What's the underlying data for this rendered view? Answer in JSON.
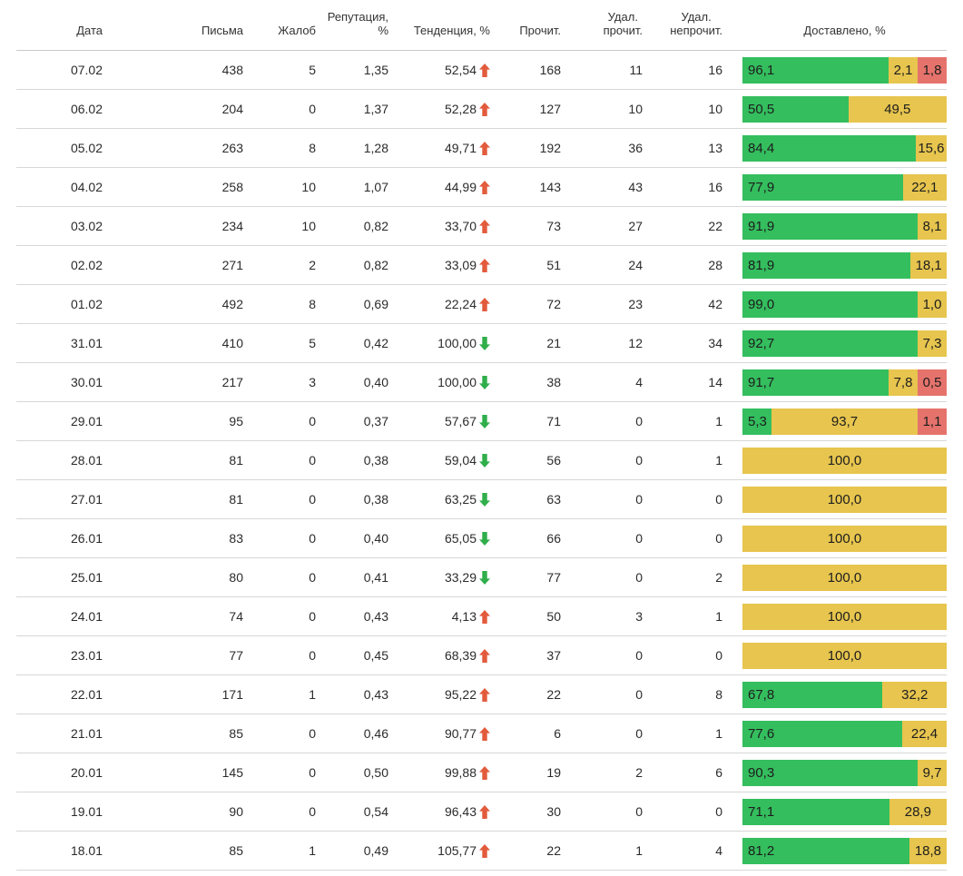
{
  "colors": {
    "green": "#34be5e",
    "yellow": "#e7c54e",
    "red": "#e5736c",
    "trend_up": "#e25b3c",
    "trend_down": "#2fae4a"
  },
  "header": {
    "date": "Дата",
    "letters": "Письма",
    "complaints": "Жалоб",
    "reputation": "Репутация, %",
    "trend": "Тенденция, %",
    "read": "Прочит.",
    "del_read_line1": "Удал.",
    "del_read_line2": "прочит.",
    "del_unread_line1": "Удал.",
    "del_unread_line2": "непрочит.",
    "delivered": "Доставлено, %"
  },
  "rows": [
    {
      "date": "07.02",
      "letters": "438",
      "complaints": "5",
      "reputation": "1,35",
      "trend": "52,54",
      "trend_dir": "up",
      "read": "168",
      "del_read": "11",
      "del_unread": "16",
      "delivered": [
        {
          "color": "green",
          "label": "96,1",
          "value": 96.1
        },
        {
          "color": "yellow",
          "label": "2,1",
          "value": 2.1
        },
        {
          "color": "red",
          "label": "1,8",
          "value": 1.8
        }
      ]
    },
    {
      "date": "06.02",
      "letters": "204",
      "complaints": "0",
      "reputation": "1,37",
      "trend": "52,28",
      "trend_dir": "up",
      "read": "127",
      "del_read": "10",
      "del_unread": "10",
      "delivered": [
        {
          "color": "green",
          "label": "50,5",
          "value": 50.5
        },
        {
          "color": "yellow",
          "label": "49,5",
          "value": 49.5
        }
      ]
    },
    {
      "date": "05.02",
      "letters": "263",
      "complaints": "8",
      "reputation": "1,28",
      "trend": "49,71",
      "trend_dir": "up",
      "read": "192",
      "del_read": "36",
      "del_unread": "13",
      "delivered": [
        {
          "color": "green",
          "label": "84,4",
          "value": 84.4
        },
        {
          "color": "yellow",
          "label": "15,6",
          "value": 15.6
        }
      ]
    },
    {
      "date": "04.02",
      "letters": "258",
      "complaints": "10",
      "reputation": "1,07",
      "trend": "44,99",
      "trend_dir": "up",
      "read": "143",
      "del_read": "43",
      "del_unread": "16",
      "delivered": [
        {
          "color": "green",
          "label": "77,9",
          "value": 77.9
        },
        {
          "color": "yellow",
          "label": "22,1",
          "value": 22.1
        }
      ]
    },
    {
      "date": "03.02",
      "letters": "234",
      "complaints": "10",
      "reputation": "0,82",
      "trend": "33,70",
      "trend_dir": "up",
      "read": "73",
      "del_read": "27",
      "del_unread": "22",
      "delivered": [
        {
          "color": "green",
          "label": "91,9",
          "value": 91.9
        },
        {
          "color": "yellow",
          "label": "8,1",
          "value": 8.1
        }
      ]
    },
    {
      "date": "02.02",
      "letters": "271",
      "complaints": "2",
      "reputation": "0,82",
      "trend": "33,09",
      "trend_dir": "up",
      "read": "51",
      "del_read": "24",
      "del_unread": "28",
      "delivered": [
        {
          "color": "green",
          "label": "81,9",
          "value": 81.9
        },
        {
          "color": "yellow",
          "label": "18,1",
          "value": 18.1
        }
      ]
    },
    {
      "date": "01.02",
      "letters": "492",
      "complaints": "8",
      "reputation": "0,69",
      "trend": "22,24",
      "trend_dir": "up",
      "read": "72",
      "del_read": "23",
      "del_unread": "42",
      "delivered": [
        {
          "color": "green",
          "label": "99,0",
          "value": 99.0
        },
        {
          "color": "yellow",
          "label": "1,0",
          "value": 1.0
        }
      ]
    },
    {
      "date": "31.01",
      "letters": "410",
      "complaints": "5",
      "reputation": "0,42",
      "trend": "100,00",
      "trend_dir": "down",
      "read": "21",
      "del_read": "12",
      "del_unread": "34",
      "delivered": [
        {
          "color": "green",
          "label": "92,7",
          "value": 92.7
        },
        {
          "color": "yellow",
          "label": "7,3",
          "value": 7.3
        }
      ]
    },
    {
      "date": "30.01",
      "letters": "217",
      "complaints": "3",
      "reputation": "0,40",
      "trend": "100,00",
      "trend_dir": "down",
      "read": "38",
      "del_read": "4",
      "del_unread": "14",
      "delivered": [
        {
          "color": "green",
          "label": "91,7",
          "value": 91.7
        },
        {
          "color": "yellow",
          "label": "7,8",
          "value": 7.8
        },
        {
          "color": "red",
          "label": "0,5",
          "value": 0.5
        }
      ]
    },
    {
      "date": "29.01",
      "letters": "95",
      "complaints": "0",
      "reputation": "0,37",
      "trend": "57,67",
      "trend_dir": "down",
      "read": "71",
      "del_read": "0",
      "del_unread": "1",
      "delivered": [
        {
          "color": "green",
          "label": "5,3",
          "value": 5.3
        },
        {
          "color": "yellow",
          "label": "93,7",
          "value": 93.7
        },
        {
          "color": "red",
          "label": "1,1",
          "value": 1.1
        }
      ]
    },
    {
      "date": "28.01",
      "letters": "81",
      "complaints": "0",
      "reputation": "0,38",
      "trend": "59,04",
      "trend_dir": "down",
      "read": "56",
      "del_read": "0",
      "del_unread": "1",
      "delivered": [
        {
          "color": "yellow",
          "label": "100,0",
          "value": 100.0
        }
      ]
    },
    {
      "date": "27.01",
      "letters": "81",
      "complaints": "0",
      "reputation": "0,38",
      "trend": "63,25",
      "trend_dir": "down",
      "read": "63",
      "del_read": "0",
      "del_unread": "0",
      "delivered": [
        {
          "color": "yellow",
          "label": "100,0",
          "value": 100.0
        }
      ]
    },
    {
      "date": "26.01",
      "letters": "83",
      "complaints": "0",
      "reputation": "0,40",
      "trend": "65,05",
      "trend_dir": "down",
      "read": "66",
      "del_read": "0",
      "del_unread": "0",
      "delivered": [
        {
          "color": "yellow",
          "label": "100,0",
          "value": 100.0
        }
      ]
    },
    {
      "date": "25.01",
      "letters": "80",
      "complaints": "0",
      "reputation": "0,41",
      "trend": "33,29",
      "trend_dir": "down",
      "read": "77",
      "del_read": "0",
      "del_unread": "2",
      "delivered": [
        {
          "color": "yellow",
          "label": "100,0",
          "value": 100.0
        }
      ]
    },
    {
      "date": "24.01",
      "letters": "74",
      "complaints": "0",
      "reputation": "0,43",
      "trend": "4,13",
      "trend_dir": "up",
      "read": "50",
      "del_read": "3",
      "del_unread": "1",
      "delivered": [
        {
          "color": "yellow",
          "label": "100,0",
          "value": 100.0
        }
      ]
    },
    {
      "date": "23.01",
      "letters": "77",
      "complaints": "0",
      "reputation": "0,45",
      "trend": "68,39",
      "trend_dir": "up",
      "read": "37",
      "del_read": "0",
      "del_unread": "0",
      "delivered": [
        {
          "color": "yellow",
          "label": "100,0",
          "value": 100.0
        }
      ]
    },
    {
      "date": "22.01",
      "letters": "171",
      "complaints": "1",
      "reputation": "0,43",
      "trend": "95,22",
      "trend_dir": "up",
      "read": "22",
      "del_read": "0",
      "del_unread": "8",
      "delivered": [
        {
          "color": "green",
          "label": "67,8",
          "value": 67.8
        },
        {
          "color": "yellow",
          "label": "32,2",
          "value": 32.2
        }
      ]
    },
    {
      "date": "21.01",
      "letters": "85",
      "complaints": "0",
      "reputation": "0,46",
      "trend": "90,77",
      "trend_dir": "up",
      "read": "6",
      "del_read": "0",
      "del_unread": "1",
      "delivered": [
        {
          "color": "green",
          "label": "77,6",
          "value": 77.6
        },
        {
          "color": "yellow",
          "label": "22,4",
          "value": 22.4
        }
      ]
    },
    {
      "date": "20.01",
      "letters": "145",
      "complaints": "0",
      "reputation": "0,50",
      "trend": "99,88",
      "trend_dir": "up",
      "read": "19",
      "del_read": "2",
      "del_unread": "6",
      "delivered": [
        {
          "color": "green",
          "label": "90,3",
          "value": 90.3
        },
        {
          "color": "yellow",
          "label": "9,7",
          "value": 9.7
        }
      ]
    },
    {
      "date": "19.01",
      "letters": "90",
      "complaints": "0",
      "reputation": "0,54",
      "trend": "96,43",
      "trend_dir": "up",
      "read": "30",
      "del_read": "0",
      "del_unread": "0",
      "delivered": [
        {
          "color": "green",
          "label": "71,1",
          "value": 71.1
        },
        {
          "color": "yellow",
          "label": "28,9",
          "value": 28.9
        }
      ]
    },
    {
      "date": "18.01",
      "letters": "85",
      "complaints": "1",
      "reputation": "0,49",
      "trend": "105,77",
      "trend_dir": "up",
      "read": "22",
      "del_read": "1",
      "del_unread": "4",
      "delivered": [
        {
          "color": "green",
          "label": "81,2",
          "value": 81.2
        },
        {
          "color": "yellow",
          "label": "18,8",
          "value": 18.8
        }
      ]
    }
  ]
}
